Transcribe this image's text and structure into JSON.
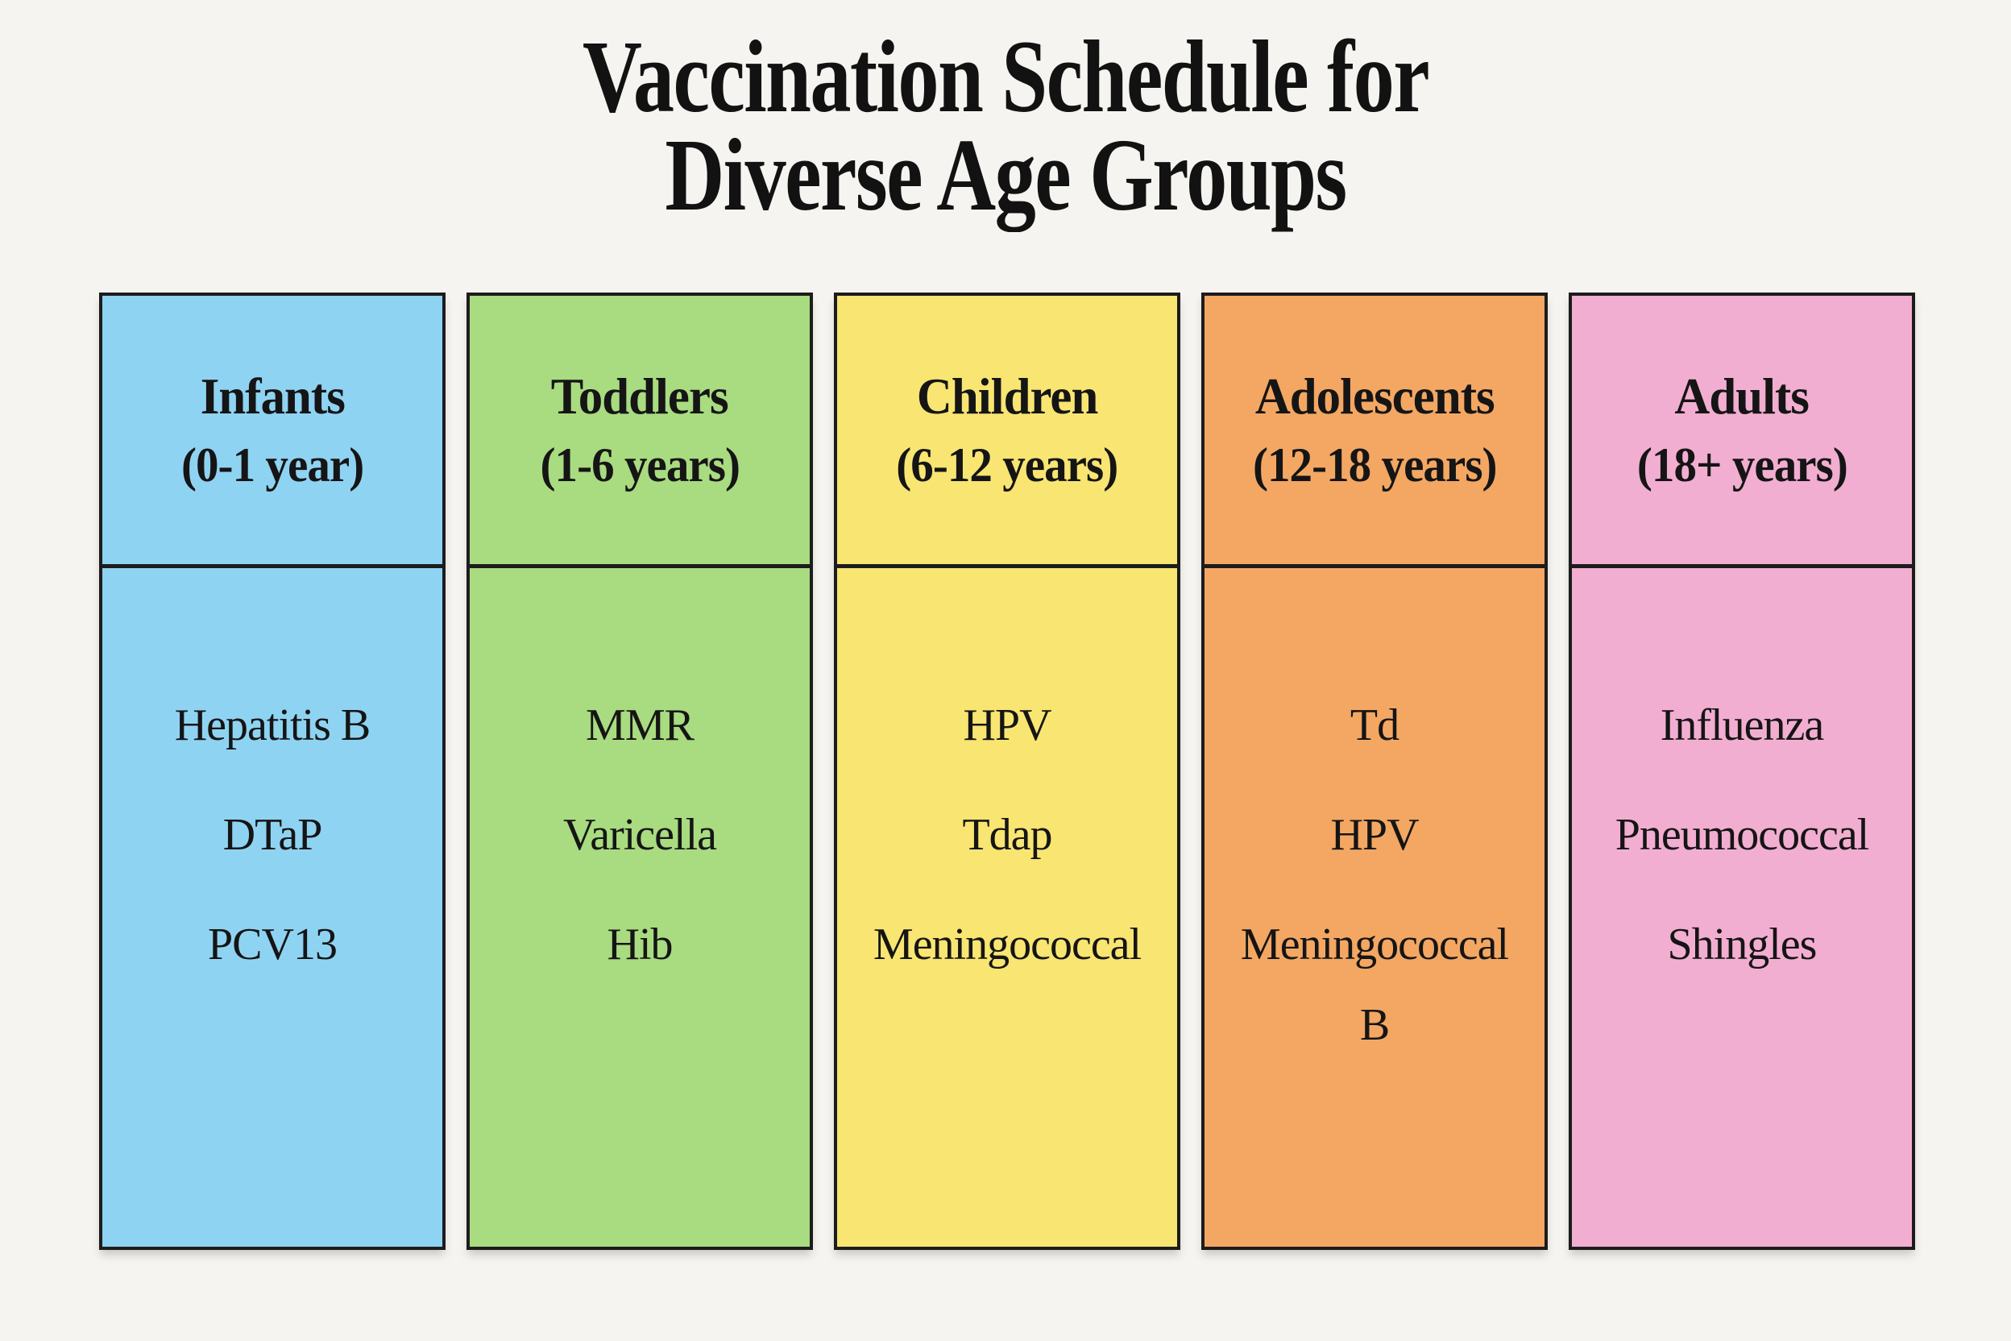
{
  "title": {
    "line1": "Vaccination Schedule for",
    "line2": "Diverse Age Groups"
  },
  "columns": [
    {
      "id": "infants",
      "name": "Infants",
      "age_range": "(0-1 year)",
      "color": "#8fd3f2",
      "vaccines": [
        "Hepatitis B",
        "DTaP",
        "PCV13"
      ]
    },
    {
      "id": "toddlers",
      "name": "Toddlers",
      "age_range": "(1-6 years)",
      "color": "#a9db80",
      "vaccines": [
        "MMR",
        "Varicella",
        "Hib"
      ]
    },
    {
      "id": "children",
      "name": "Children",
      "age_range": "(6-12 years)",
      "color": "#f8e572",
      "vaccines": [
        "HPV",
        "Tdap",
        "Meningococcal"
      ]
    },
    {
      "id": "adolescents",
      "name": "Adolescents",
      "age_range": "(12-18 years)",
      "color": "#f3a763",
      "vaccines": [
        "Td",
        "HPV",
        "Meningococcal B"
      ]
    },
    {
      "id": "adults",
      "name": "Adults",
      "age_range": "(18+ years)",
      "color": "#f2aed1",
      "vaccines": [
        "Influenza",
        "Pneumococcal",
        "Shingles"
      ]
    }
  ],
  "colors": {
    "page_background": "#f6f4f0",
    "border": "#1c1c1c",
    "text": "#151515",
    "infants_blue": "#8fd3f2",
    "toddlers_green": "#a9db80",
    "children_yellow": "#f8e572",
    "adolescents_orange": "#f3a763",
    "adults_pink": "#f2aed1"
  },
  "chart_data": {
    "type": "table",
    "title": "Vaccination Schedule for Diverse Age Groups",
    "columns": [
      "Infants (0-1 year)",
      "Toddlers (1-6 years)",
      "Children (6-12 years)",
      "Adolescents (12-18 years)",
      "Adults (18+ years)"
    ],
    "rows": [
      [
        "Hepatitis B",
        "MMR",
        "HPV",
        "Td",
        "Influenza"
      ],
      [
        "DTaP",
        "Varicella",
        "Tdap",
        "HPV",
        "Pneumococcal"
      ],
      [
        "PCV13",
        "Hib",
        "Meningococcal",
        "Meningococcal B",
        "Shingles"
      ]
    ],
    "legend_position": "none",
    "grid": false
  }
}
